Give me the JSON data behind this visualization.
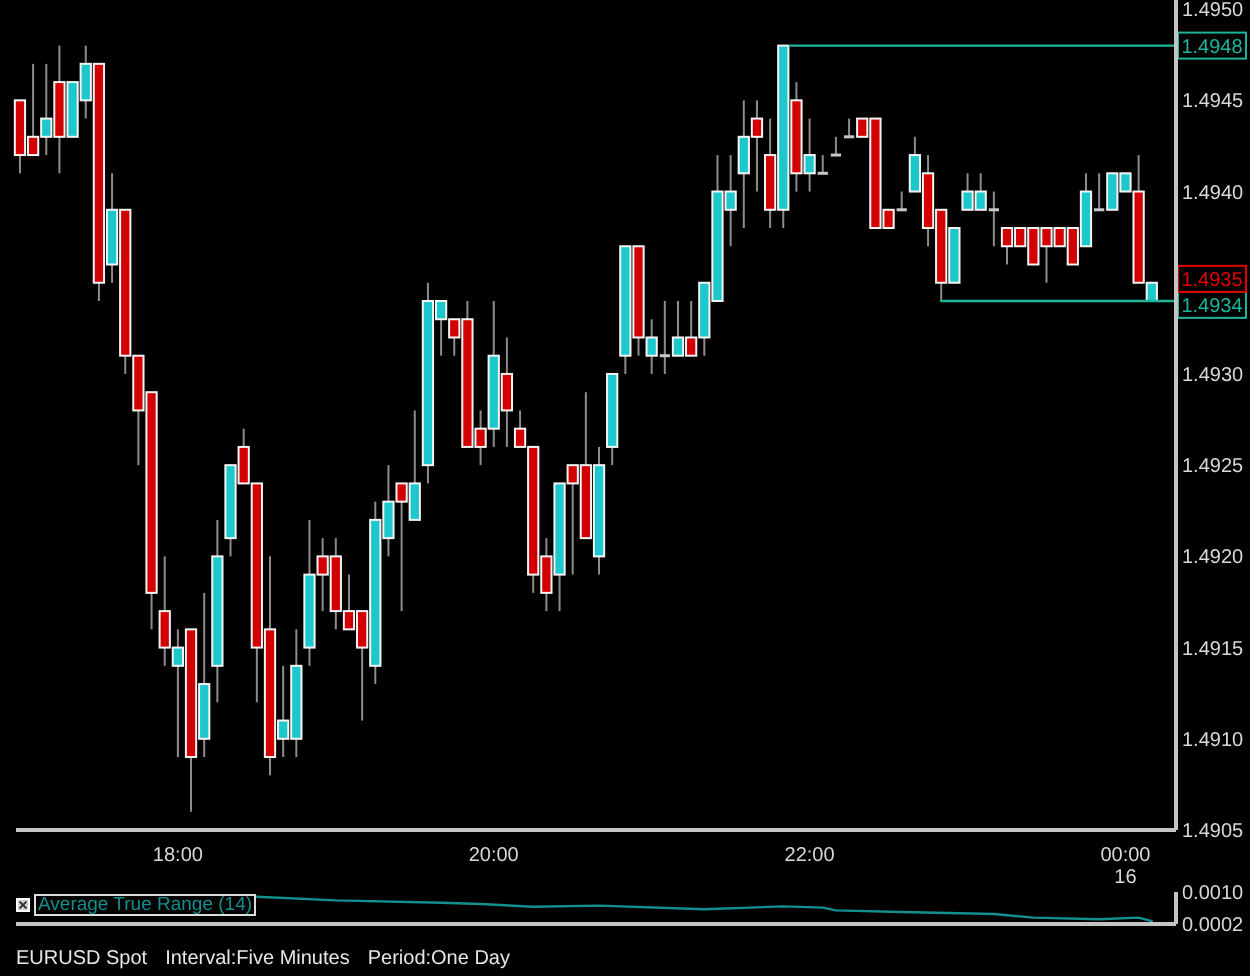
{
  "chart_data": [
    {
      "type": "candlestick",
      "x": [
        17,
        17.0833,
        17.1667,
        17.25,
        17.3333,
        17.4167,
        17.5,
        17.5833,
        17.6667,
        17.75,
        17.8333,
        17.9167,
        18,
        18.0833,
        18.1667,
        18.25,
        18.3333,
        18.4167,
        18.5,
        18.5833,
        18.6667,
        18.75,
        18.8333,
        18.9167,
        19,
        19.0833,
        19.1667,
        19.25,
        19.3333,
        19.4167,
        19.5,
        19.5833,
        19.6667,
        19.75,
        19.8333,
        19.9167,
        20,
        20.0833,
        20.1667,
        20.25,
        20.3333,
        20.4167,
        20.5,
        20.5833,
        20.6667,
        20.75,
        20.8333,
        20.9167,
        21,
        21.0833,
        21.1667,
        21.25,
        21.3333,
        21.4167,
        21.5,
        21.5833,
        21.6667,
        21.75,
        21.8333,
        21.9167,
        22,
        22.0833,
        22.1667,
        22.25,
        22.3333,
        22.4167,
        22.5,
        22.5833,
        22.6667,
        22.75,
        22.8333,
        22.9167,
        23,
        23.0833,
        23.1667,
        23.25,
        23.3333,
        23.4167,
        23.5,
        23.5833,
        23.6667,
        23.75,
        23.8333,
        23.9167,
        24,
        24.0833,
        24.1667
      ],
      "ohlc": [
        [
          1.4945,
          1.4945,
          1.4941,
          1.4942
        ],
        [
          1.4943,
          1.4947,
          1.4942,
          1.4942
        ],
        [
          1.4943,
          1.4947,
          1.4942,
          1.4944
        ],
        [
          1.4946,
          1.4948,
          1.4941,
          1.4943
        ],
        [
          1.4943,
          1.4946,
          1.4943,
          1.4946
        ],
        [
          1.4945,
          1.4948,
          1.4944,
          1.4947
        ],
        [
          1.4947,
          1.4947,
          1.4934,
          1.4935
        ],
        [
          1.4936,
          1.4941,
          1.4935,
          1.4939
        ],
        [
          1.4939,
          1.4939,
          1.493,
          1.4931
        ],
        [
          1.4931,
          1.4931,
          1.4925,
          1.4928
        ],
        [
          1.4929,
          1.4929,
          1.4916,
          1.4918
        ],
        [
          1.4917,
          1.492,
          1.4914,
          1.4915
        ],
        [
          1.4914,
          1.4916,
          1.4909,
          1.4915
        ],
        [
          1.4916,
          1.4916,
          1.4906,
          1.4909
        ],
        [
          1.491,
          1.4918,
          1.4909,
          1.4913
        ],
        [
          1.4914,
          1.4922,
          1.4912,
          1.492
        ],
        [
          1.4921,
          1.4925,
          1.492,
          1.4925
        ],
        [
          1.4926,
          1.4927,
          1.4924,
          1.4924
        ],
        [
          1.4924,
          1.4924,
          1.4912,
          1.4915
        ],
        [
          1.4916,
          1.492,
          1.4908,
          1.4909
        ],
        [
          1.491,
          1.4914,
          1.4909,
          1.4911
        ],
        [
          1.491,
          1.4916,
          1.4909,
          1.4914
        ],
        [
          1.4915,
          1.4922,
          1.4914,
          1.4919
        ],
        [
          1.492,
          1.4921,
          1.4917,
          1.4919
        ],
        [
          1.492,
          1.4921,
          1.4916,
          1.4917
        ],
        [
          1.4917,
          1.4919,
          1.4916,
          1.4916
        ],
        [
          1.4917,
          1.4917,
          1.4911,
          1.4915
        ],
        [
          1.4914,
          1.4923,
          1.4913,
          1.4922
        ],
        [
          1.4921,
          1.4925,
          1.492,
          1.4923
        ],
        [
          1.4924,
          1.4924,
          1.4917,
          1.4923
        ],
        [
          1.4922,
          1.4928,
          1.4922,
          1.4924
        ],
        [
          1.4925,
          1.4935,
          1.4924,
          1.4934
        ],
        [
          1.4933,
          1.4934,
          1.4931,
          1.4934
        ],
        [
          1.4933,
          1.4933,
          1.4931,
          1.4932
        ],
        [
          1.4933,
          1.4934,
          1.4926,
          1.4926
        ],
        [
          1.4927,
          1.4928,
          1.4925,
          1.4926
        ],
        [
          1.4927,
          1.4934,
          1.4926,
          1.4931
        ],
        [
          1.493,
          1.4932,
          1.4926,
          1.4928
        ],
        [
          1.4927,
          1.4928,
          1.4926,
          1.4926
        ],
        [
          1.4926,
          1.4926,
          1.4918,
          1.4919
        ],
        [
          1.492,
          1.4921,
          1.4917,
          1.4918
        ],
        [
          1.4919,
          1.4924,
          1.4917,
          1.4924
        ],
        [
          1.4925,
          1.4925,
          1.4919,
          1.4924
        ],
        [
          1.4925,
          1.4929,
          1.4921,
          1.4921
        ],
        [
          1.492,
          1.4926,
          1.4919,
          1.4925
        ],
        [
          1.4926,
          1.493,
          1.4925,
          1.493
        ],
        [
          1.4931,
          1.4937,
          1.493,
          1.4937
        ],
        [
          1.4937,
          1.4937,
          1.4931,
          1.4932
        ],
        [
          1.4931,
          1.4933,
          1.493,
          1.4932
        ],
        [
          1.4931,
          1.4934,
          1.493,
          1.4931
        ],
        [
          1.4931,
          1.4934,
          1.4931,
          1.4932
        ],
        [
          1.4932,
          1.4934,
          1.4931,
          1.4931
        ],
        [
          1.4932,
          1.4935,
          1.4931,
          1.4935
        ],
        [
          1.4934,
          1.4942,
          1.4934,
          1.494
        ],
        [
          1.4939,
          1.4942,
          1.4937,
          1.494
        ],
        [
          1.4941,
          1.4945,
          1.4938,
          1.4943
        ],
        [
          1.4944,
          1.4945,
          1.494,
          1.4943
        ],
        [
          1.4942,
          1.4944,
          1.4938,
          1.4939
        ],
        [
          1.4939,
          1.4948,
          1.4938,
          1.4948
        ],
        [
          1.4945,
          1.4946,
          1.494,
          1.4941
        ],
        [
          1.4941,
          1.4944,
          1.494,
          1.4942
        ],
        [
          1.4941,
          1.4942,
          1.4941,
          1.4941
        ],
        [
          1.4942,
          1.4943,
          1.4942,
          1.4942
        ],
        [
          1.4943,
          1.4944,
          1.4943,
          1.4943
        ],
        [
          1.4944,
          1.4944,
          1.4943,
          1.4943
        ],
        [
          1.4944,
          1.4944,
          1.4938,
          1.4938
        ],
        [
          1.4939,
          1.4939,
          1.4938,
          1.4938
        ],
        [
          1.4939,
          1.494,
          1.4939,
          1.4939
        ],
        [
          1.494,
          1.4943,
          1.494,
          1.4942
        ],
        [
          1.4941,
          1.4942,
          1.4937,
          1.4938
        ],
        [
          1.4939,
          1.4939,
          1.4934,
          1.4935
        ],
        [
          1.4935,
          1.4938,
          1.4935,
          1.4938
        ],
        [
          1.4939,
          1.4941,
          1.4939,
          1.494
        ],
        [
          1.4939,
          1.4941,
          1.4939,
          1.494
        ],
        [
          1.4939,
          1.494,
          1.4937,
          1.4939
        ],
        [
          1.4938,
          1.4938,
          1.4936,
          1.4937
        ],
        [
          1.4938,
          1.4938,
          1.4937,
          1.4937
        ],
        [
          1.4938,
          1.4938,
          1.4936,
          1.4936
        ],
        [
          1.4938,
          1.4938,
          1.4935,
          1.4937
        ],
        [
          1.4938,
          1.4938,
          1.4937,
          1.4937
        ],
        [
          1.4938,
          1.4938,
          1.4936,
          1.4936
        ],
        [
          1.4937,
          1.4941,
          1.4937,
          1.494
        ],
        [
          1.4939,
          1.4941,
          1.4939,
          1.4939
        ],
        [
          1.4939,
          1.4941,
          1.4939,
          1.4941
        ],
        [
          1.494,
          1.4941,
          1.494,
          1.4941
        ],
        [
          1.494,
          1.4942,
          1.4935,
          1.4935
        ],
        [
          1.4934,
          1.4935,
          1.4934,
          1.4935
        ]
      ],
      "colors": [
        "#d20000",
        "#d20000",
        "#1cc8cc",
        "#d20000",
        "#1cc8cc",
        "#1cc8cc",
        "#d20000",
        "#1cc8cc",
        "#d20000",
        "#d20000",
        "#d20000",
        "#d20000",
        "#1cc8cc",
        "#d20000",
        "#1cc8cc",
        "#1cc8cc",
        "#1cc8cc",
        "#d20000",
        "#d20000",
        "#d20000",
        "#1cc8cc",
        "#1cc8cc",
        "#1cc8cc",
        "#d20000",
        "#d20000",
        "#d20000",
        "#d20000",
        "#1cc8cc",
        "#1cc8cc",
        "#d20000",
        "#1cc8cc",
        "#1cc8cc",
        "#1cc8cc",
        "#d20000",
        "#d20000",
        "#d20000",
        "#1cc8cc",
        "#d20000",
        "#d20000",
        "#d20000",
        "#d20000",
        "#1cc8cc",
        "#d20000",
        "#d20000",
        "#1cc8cc",
        "#1cc8cc",
        "#1cc8cc",
        "#d20000",
        "#1cc8cc",
        "#c8c8c8",
        "#1cc8cc",
        "#d20000",
        "#1cc8cc",
        "#1cc8cc",
        "#1cc8cc",
        "#1cc8cc",
        "#d20000",
        "#d20000",
        "#1cc8cc",
        "#d20000",
        "#1cc8cc",
        "#c8c8c8",
        "#c8c8c8",
        "#c8c8c8",
        "#d20000",
        "#d20000",
        "#d20000",
        "#c8c8c8",
        "#1cc8cc",
        "#d20000",
        "#d20000",
        "#1cc8cc",
        "#1cc8cc",
        "#1cc8cc",
        "#c8c8c8",
        "#d20000",
        "#d20000",
        "#d20000",
        "#d20000",
        "#d20000",
        "#d20000",
        "#1cc8cc",
        "#c8c8c8",
        "#1cc8cc",
        "#1cc8cc",
        "#d20000",
        "#1cc8cc"
      ],
      "xlim": [
        16.975,
        24.32
      ],
      "xticks": [
        {
          "value": 18,
          "label": "18:00"
        },
        {
          "value": 20,
          "label": "20:00"
        },
        {
          "value": 22,
          "label": "22:00"
        },
        {
          "value": 24,
          "label": "00:00\n16"
        }
      ],
      "ylim": [
        1.4905,
        1.49505
      ],
      "yticks": [
        1.4905,
        {
          "value": 1.491,
          "label": "1.4910"
        },
        1.4915,
        {
          "value": 1.492,
          "label": "1.4920"
        },
        1.4925,
        {
          "value": 1.493,
          "label": "1.4930"
        },
        {
          "value": 1.494,
          "label": "1.4940"
        },
        1.4945,
        {
          "value": 1.495,
          "label": "1.4950"
        }
      ],
      "series": [
        {
          "type": "line",
          "x": [
            21.875,
            24.32
          ],
          "values": [
            1.4948,
            1.4948
          ],
          "color": "#1bb59e",
          "value_labels": [
            null,
            "1.4948"
          ]
        },
        {
          "type": "line",
          "x": [
            22.8333,
            24.32
          ],
          "values": [
            1.4934,
            1.4934
          ],
          "color": "#1bb59e",
          "value_labels": [
            null,
            "1.4934"
          ]
        }
      ],
      "annotations": [
        {
          "text": "1.4935",
          "y": 1.4935
        },
        "EURUSD Spot",
        "Interval:Five Minutes",
        "Period:One Day"
      ]
    },
    {
      "type": "line",
      "x": [
        18.5,
        19,
        19.6667,
        19.9167,
        20.25,
        20.6667,
        21.3333,
        21.8333,
        22.0833,
        22.1667,
        22.5833,
        23.1667,
        23.4167,
        23.8333,
        24.0833,
        24.1667
      ],
      "series": [
        {
          "name": "Average True Range (14)",
          "color": "#148f8f",
          "values": [
            0.00088,
            0.00079,
            0.00073,
            0.0007,
            0.00063,
            0.00066,
            0.00057,
            0.00064,
            0.00061,
            0.00054,
            0.0005,
            0.00045,
            0.00036,
            0.00032,
            0.00036,
            0.00027
          ]
        }
      ],
      "xlim": [
        16.975,
        24.32
      ],
      "ylim": [
        0.0002,
        0.001
      ],
      "yticks": [
        {
          "value": 0.001,
          "label": "0.0010"
        },
        0.0002
      ],
      "tick_labels": "y",
      "legend": "top left"
    }
  ]
}
